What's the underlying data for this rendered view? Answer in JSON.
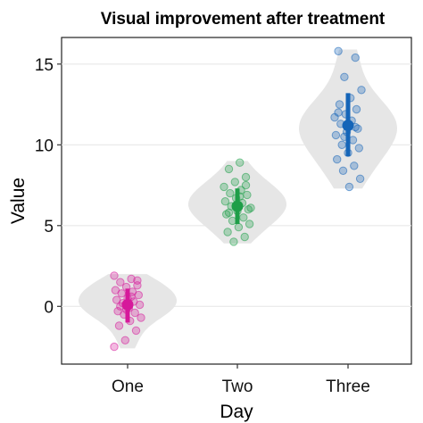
{
  "chart_data": {
    "type": "violin",
    "title": "Visual improvement after treatment",
    "xlabel": "Day",
    "ylabel": "Value",
    "categories": [
      "One",
      "Two",
      "Three"
    ],
    "ylim": [
      -3.5,
      16.8
    ],
    "yticks": [
      0,
      5,
      10,
      15
    ],
    "grid": true,
    "colors": {
      "One": "#d6199b",
      "Two": "#1e9e48",
      "Three": "#1565b8",
      "violin": "#e6e6e6",
      "grid": "#e8e8e8"
    },
    "groups": [
      {
        "name": "One",
        "mean": 0.1,
        "interval": [
          -1.0,
          1.1
        ],
        "violin_range": [
          -2.6,
          2.0
        ],
        "points": [
          1.9,
          1.7,
          1.5,
          1.6,
          1.2,
          1.0,
          0.9,
          0.8,
          0.7,
          0.5,
          0.4,
          0.3,
          0.2,
          0.1,
          -0.1,
          -0.3,
          -0.4,
          -0.5,
          -0.7,
          -0.9,
          -1.2,
          -1.5,
          -2.1,
          -2.5,
          0.6,
          0.0,
          1.3,
          -0.2
        ]
      },
      {
        "name": "Two",
        "mean": 6.2,
        "interval": [
          5.1,
          7.3
        ],
        "violin_range": [
          3.9,
          9.0
        ],
        "points": [
          8.9,
          8.5,
          8.0,
          7.7,
          7.4,
          7.2,
          7.0,
          6.9,
          6.7,
          6.5,
          6.4,
          6.2,
          6.0,
          5.9,
          5.7,
          5.5,
          5.3,
          5.1,
          4.9,
          4.6,
          4.3,
          4.0,
          6.1,
          6.8,
          5.8,
          7.5
        ]
      },
      {
        "name": "Three",
        "mean": 11.2,
        "interval": [
          9.3,
          13.2
        ],
        "violin_range": [
          7.3,
          15.9
        ],
        "points": [
          15.8,
          15.4,
          14.2,
          13.4,
          12.9,
          12.5,
          12.2,
          11.9,
          11.7,
          11.5,
          11.3,
          11.0,
          10.8,
          10.6,
          10.3,
          10.0,
          9.8,
          9.5,
          9.1,
          8.7,
          8.4,
          7.9,
          7.4,
          12.0,
          11.1,
          10.5
        ]
      }
    ]
  }
}
